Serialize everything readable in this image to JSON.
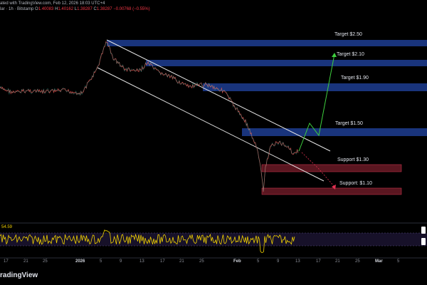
{
  "header": {
    "published": "ated with TradingView.com, Feb 12, 2026 18:03 UTC+4",
    "symbol": "lar · 1h · Bitstamp",
    "o_label": "O",
    "o_val": "1.40083",
    "h_label": "H",
    "h_val": "1.40162",
    "l_label": "L",
    "l_val": "1.38287",
    "c_label": "C",
    "c_val": "1.38287",
    "change": "−0.00768 (−0.55%)"
  },
  "levels": {
    "target_250": "Target $2.50",
    "target_210": "Target $2.10",
    "target_190": "Target $1.90",
    "target_150": "Target $1.50",
    "support_130": "Support $1.30",
    "support_110": "Support: $1.10"
  },
  "rsi": {
    "value": "54.59"
  },
  "xaxis": [
    "17",
    "21",
    "25",
    "2026",
    "5",
    "9",
    "13",
    "17",
    "21",
    "25",
    "Feb",
    "5",
    "9",
    "13",
    "17",
    "21",
    "25",
    "Mar",
    "5"
  ],
  "brand": "radingView",
  "colors": {
    "zone_blue": "#1c3a8a",
    "zone_red": "#5a1620",
    "price_up": "#26a69a",
    "price_down": "#ef5350",
    "rsi": "#f2d200",
    "projection": "#3ecf3e",
    "channel": "#e6e6e6"
  }
}
